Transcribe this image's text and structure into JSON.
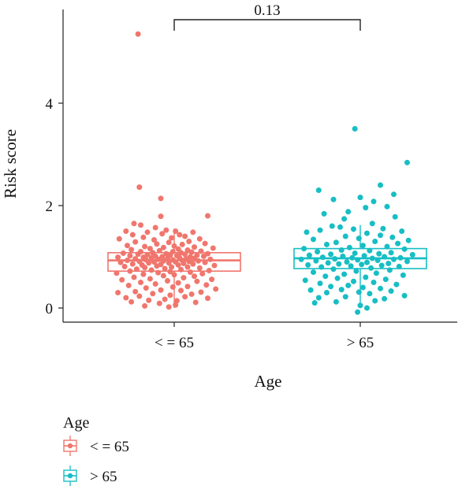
{
  "chart_data": {
    "type": "boxplot-jitter",
    "title": "",
    "xlabel": "Age",
    "ylabel": "Risk score",
    "ylim": [
      -0.2,
      5.85
    ],
    "y_ticks": [
      0,
      2,
      4
    ],
    "y_tick_labels": [
      "0",
      "2",
      "4"
    ],
    "categories": [
      "< = 65",
      "> 65"
    ],
    "colors": [
      "#F0766D",
      "#17BEC4"
    ],
    "grid": false,
    "legend": {
      "title": "Age",
      "position": "bottom-left",
      "entries": [
        "< = 65",
        "> 65"
      ]
    },
    "comparison": {
      "groups": [
        "< = 65",
        "> 65"
      ],
      "label": "0.13"
    },
    "boxes": [
      {
        "name": "< = 65",
        "q1": 0.72,
        "median": 0.93,
        "q3": 1.08,
        "whisker_low": 0.0,
        "whisker_high": 1.55
      },
      {
        "name": "> 65",
        "q1": 0.77,
        "median": 0.97,
        "q3": 1.16,
        "whisker_low": 0.0,
        "whisker_high": 1.62
      }
    ],
    "series": [
      {
        "name": "< = 65",
        "points": [
          {
            "x": -0.54,
            "y": 5.35
          },
          {
            "x": -0.52,
            "y": 2.36
          },
          {
            "x": -0.2,
            "y": 2.14
          },
          {
            "x": 0.5,
            "y": 1.8
          },
          {
            "x": -0.2,
            "y": 1.79
          },
          {
            "x": -0.6,
            "y": 1.65
          },
          {
            "x": -0.5,
            "y": 1.62
          },
          {
            "x": -0.28,
            "y": 1.57
          },
          {
            "x": -0.12,
            "y": 1.52
          },
          {
            "x": 0.02,
            "y": 1.5
          },
          {
            "x": -0.72,
            "y": 1.5
          },
          {
            "x": -0.4,
            "y": 1.48
          },
          {
            "x": 0.28,
            "y": 1.48
          },
          {
            "x": -0.18,
            "y": 1.45
          },
          {
            "x": 0.08,
            "y": 1.43
          },
          {
            "x": -0.62,
            "y": 1.43
          },
          {
            "x": 0.16,
            "y": 1.4
          },
          {
            "x": -0.46,
            "y": 1.38
          },
          {
            "x": -0.04,
            "y": 1.37
          },
          {
            "x": 0.38,
            "y": 1.35
          },
          {
            "x": -0.82,
            "y": 1.35
          },
          {
            "x": -0.3,
            "y": 1.33
          },
          {
            "x": 0.22,
            "y": 1.3
          },
          {
            "x": -0.58,
            "y": 1.29
          },
          {
            "x": -0.08,
            "y": 1.28
          },
          {
            "x": 0.46,
            "y": 1.26
          },
          {
            "x": -0.26,
            "y": 1.25
          },
          {
            "x": 0.12,
            "y": 1.24
          },
          {
            "x": -0.7,
            "y": 1.22
          },
          {
            "x": 0.0,
            "y": 1.21
          },
          {
            "x": -0.44,
            "y": 1.2
          },
          {
            "x": 0.3,
            "y": 1.19
          },
          {
            "x": -0.16,
            "y": 1.18
          },
          {
            "x": 0.58,
            "y": 1.17
          },
          {
            "x": -0.36,
            "y": 1.16
          },
          {
            "x": 0.06,
            "y": 1.15
          },
          {
            "x": -0.64,
            "y": 1.14
          },
          {
            "x": 0.2,
            "y": 1.13
          },
          {
            "x": -0.22,
            "y": 1.12
          },
          {
            "x": 0.4,
            "y": 1.11
          },
          {
            "x": -0.5,
            "y": 1.1
          },
          {
            "x": -0.02,
            "y": 1.1
          },
          {
            "x": 0.26,
            "y": 1.09
          },
          {
            "x": -0.32,
            "y": 1.08
          },
          {
            "x": 0.1,
            "y": 1.08
          },
          {
            "x": -0.76,
            "y": 1.07
          },
          {
            "x": 0.5,
            "y": 1.06
          },
          {
            "x": -0.12,
            "y": 1.06
          },
          {
            "x": -0.54,
            "y": 1.05
          },
          {
            "x": 0.16,
            "y": 1.05
          },
          {
            "x": -0.4,
            "y": 1.04
          },
          {
            "x": 0.34,
            "y": 1.03
          },
          {
            "x": -0.06,
            "y": 1.03
          },
          {
            "x": -0.66,
            "y": 1.02
          },
          {
            "x": 0.04,
            "y": 1.02
          },
          {
            "x": -0.28,
            "y": 1.01
          },
          {
            "x": 0.44,
            "y": 1.01
          },
          {
            "x": -0.18,
            "y": 1.0
          },
          {
            "x": 0.24,
            "y": 1.0
          },
          {
            "x": -0.46,
            "y": 0.99
          },
          {
            "x": -0.84,
            "y": 0.99
          },
          {
            "x": 0.08,
            "y": 0.98
          },
          {
            "x": -0.34,
            "y": 0.98
          },
          {
            "x": 0.3,
            "y": 0.97
          },
          {
            "x": -0.1,
            "y": 0.97
          },
          {
            "x": -0.58,
            "y": 0.96
          },
          {
            "x": 0.18,
            "y": 0.96
          },
          {
            "x": -0.24,
            "y": 0.95
          },
          {
            "x": 0.54,
            "y": 0.95
          },
          {
            "x": -0.02,
            "y": 0.94
          },
          {
            "x": -0.42,
            "y": 0.94
          },
          {
            "x": 0.12,
            "y": 0.93
          },
          {
            "x": -0.7,
            "y": 0.93
          },
          {
            "x": 0.36,
            "y": 0.92
          },
          {
            "x": -0.16,
            "y": 0.92
          },
          {
            "x": -0.52,
            "y": 0.91
          },
          {
            "x": 0.22,
            "y": 0.91
          },
          {
            "x": -0.3,
            "y": 0.9
          },
          {
            "x": 0.02,
            "y": 0.9
          },
          {
            "x": -0.8,
            "y": 0.89
          },
          {
            "x": 0.46,
            "y": 0.89
          },
          {
            "x": -0.08,
            "y": 0.88
          },
          {
            "x": -0.38,
            "y": 0.88
          },
          {
            "x": 0.14,
            "y": 0.87
          },
          {
            "x": -0.62,
            "y": 0.86
          },
          {
            "x": 0.28,
            "y": 0.86
          },
          {
            "x": -0.2,
            "y": 0.85
          },
          {
            "x": -0.48,
            "y": 0.84
          },
          {
            "x": 0.06,
            "y": 0.84
          },
          {
            "x": 0.6,
            "y": 0.83
          },
          {
            "x": -0.26,
            "y": 0.82
          },
          {
            "x": -0.74,
            "y": 0.81
          },
          {
            "x": 0.2,
            "y": 0.8
          },
          {
            "x": -0.04,
            "y": 0.8
          },
          {
            "x": -0.44,
            "y": 0.79
          },
          {
            "x": 0.38,
            "y": 0.78
          },
          {
            "x": -0.14,
            "y": 0.77
          },
          {
            "x": -0.56,
            "y": 0.76
          },
          {
            "x": 0.1,
            "y": 0.75
          },
          {
            "x": -0.34,
            "y": 0.74
          },
          {
            "x": 0.52,
            "y": 0.73
          },
          {
            "x": -0.66,
            "y": 0.72
          },
          {
            "x": -0.06,
            "y": 0.71
          },
          {
            "x": 0.24,
            "y": 0.7
          },
          {
            "x": -0.24,
            "y": 0.69
          },
          {
            "x": -0.86,
            "y": 0.68
          },
          {
            "x": 0.42,
            "y": 0.67
          },
          {
            "x": -0.46,
            "y": 0.66
          },
          {
            "x": 0.0,
            "y": 0.65
          },
          {
            "x": -0.16,
            "y": 0.63
          },
          {
            "x": 0.3,
            "y": 0.62
          },
          {
            "x": -0.6,
            "y": 0.6
          },
          {
            "x": 0.14,
            "y": 0.59
          },
          {
            "x": -0.36,
            "y": 0.57
          },
          {
            "x": 0.56,
            "y": 0.56
          },
          {
            "x": -0.78,
            "y": 0.55
          },
          {
            "x": -0.1,
            "y": 0.53
          },
          {
            "x": 0.34,
            "y": 0.52
          },
          {
            "x": -0.5,
            "y": 0.5
          },
          {
            "x": 0.06,
            "y": 0.49
          },
          {
            "x": -0.28,
            "y": 0.47
          },
          {
            "x": 0.48,
            "y": 0.45
          },
          {
            "x": -0.68,
            "y": 0.44
          },
          {
            "x": 0.2,
            "y": 0.42
          },
          {
            "x": -0.02,
            "y": 0.41
          },
          {
            "x": -0.42,
            "y": 0.39
          },
          {
            "x": 0.62,
            "y": 0.37
          },
          {
            "x": -0.2,
            "y": 0.35
          },
          {
            "x": 0.1,
            "y": 0.34
          },
          {
            "x": -0.58,
            "y": 0.32
          },
          {
            "x": 0.4,
            "y": 0.31
          },
          {
            "x": -0.84,
            "y": 0.3
          },
          {
            "x": -0.32,
            "y": 0.28
          },
          {
            "x": 0.26,
            "y": 0.27
          },
          {
            "x": -0.06,
            "y": 0.25
          },
          {
            "x": -0.52,
            "y": 0.23
          },
          {
            "x": 0.16,
            "y": 0.22
          },
          {
            "x": -0.72,
            "y": 0.2
          },
          {
            "x": 0.5,
            "y": 0.19
          },
          {
            "x": -0.14,
            "y": 0.17
          },
          {
            "x": -0.38,
            "y": 0.15
          },
          {
            "x": 0.04,
            "y": 0.14
          },
          {
            "x": -0.64,
            "y": 0.12
          },
          {
            "x": 0.32,
            "y": 0.11
          },
          {
            "x": -0.22,
            "y": 0.09
          },
          {
            "x": 0.02,
            "y": 0.06
          },
          {
            "x": -0.44,
            "y": 0.04
          },
          {
            "x": -0.08,
            "y": 0.02
          }
        ]
      },
      {
        "name": "> 65",
        "points": [
          {
            "x": -0.08,
            "y": 3.5
          },
          {
            "x": 0.7,
            "y": 2.84
          },
          {
            "x": 0.3,
            "y": 2.4
          },
          {
            "x": -0.62,
            "y": 2.3
          },
          {
            "x": 0.5,
            "y": 2.22
          },
          {
            "x": 0.0,
            "y": 2.16
          },
          {
            "x": -0.4,
            "y": 2.12
          },
          {
            "x": 0.2,
            "y": 2.08
          },
          {
            "x": 0.4,
            "y": 1.98
          },
          {
            "x": 0.08,
            "y": 1.96
          },
          {
            "x": -0.18,
            "y": 1.88
          },
          {
            "x": -0.54,
            "y": 1.84
          },
          {
            "x": 0.52,
            "y": 1.78
          },
          {
            "x": -0.24,
            "y": 1.74
          },
          {
            "x": 0.18,
            "y": 1.65
          },
          {
            "x": -0.42,
            "y": 1.6
          },
          {
            "x": 0.34,
            "y": 1.55
          },
          {
            "x": -0.3,
            "y": 1.58
          },
          {
            "x": -0.1,
            "y": 1.54
          },
          {
            "x": -0.6,
            "y": 1.52
          },
          {
            "x": 0.62,
            "y": 1.5
          },
          {
            "x": -0.8,
            "y": 1.48
          },
          {
            "x": 0.1,
            "y": 1.46
          },
          {
            "x": 0.3,
            "y": 1.42
          },
          {
            "x": -0.22,
            "y": 1.4
          },
          {
            "x": 0.48,
            "y": 1.38
          },
          {
            "x": -0.02,
            "y": 1.36
          },
          {
            "x": -0.7,
            "y": 1.34
          },
          {
            "x": 0.72,
            "y": 1.32
          },
          {
            "x": 0.22,
            "y": 1.3
          },
          {
            "x": -0.36,
            "y": 1.28
          },
          {
            "x": 0.56,
            "y": 1.26
          },
          {
            "x": -0.5,
            "y": 1.24
          },
          {
            "x": 0.04,
            "y": 1.22
          },
          {
            "x": 0.4,
            "y": 1.2
          },
          {
            "x": -0.16,
            "y": 1.18
          },
          {
            "x": -0.84,
            "y": 1.16
          },
          {
            "x": 0.66,
            "y": 1.15
          },
          {
            "x": -0.28,
            "y": 1.13
          },
          {
            "x": 0.14,
            "y": 1.12
          },
          {
            "x": -0.64,
            "y": 1.1
          },
          {
            "x": 0.46,
            "y": 1.08
          },
          {
            "x": -0.08,
            "y": 1.07
          },
          {
            "x": 0.28,
            "y": 1.06
          },
          {
            "x": -0.44,
            "y": 1.05
          },
          {
            "x": 0.78,
            "y": 1.04
          },
          {
            "x": -0.76,
            "y": 1.03
          },
          {
            "x": 0.06,
            "y": 1.02
          },
          {
            "x": -0.26,
            "y": 1.01
          },
          {
            "x": 0.36,
            "y": 1.0
          },
          {
            "x": -0.56,
            "y": 0.99
          },
          {
            "x": 0.6,
            "y": 0.98
          },
          {
            "x": -0.12,
            "y": 0.98
          },
          {
            "x": 0.18,
            "y": 0.97
          },
          {
            "x": -0.38,
            "y": 0.96
          },
          {
            "x": -0.88,
            "y": 0.95
          },
          {
            "x": 0.5,
            "y": 0.95
          },
          {
            "x": -0.04,
            "y": 0.94
          },
          {
            "x": 0.26,
            "y": 0.93
          },
          {
            "x": -0.66,
            "y": 0.92
          },
          {
            "x": 0.7,
            "y": 0.91
          },
          {
            "x": -0.2,
            "y": 0.9
          },
          {
            "x": 0.1,
            "y": 0.89
          },
          {
            "x": -0.48,
            "y": 0.88
          },
          {
            "x": 0.42,
            "y": 0.87
          },
          {
            "x": -0.32,
            "y": 0.86
          },
          {
            "x": 0.02,
            "y": 0.85
          },
          {
            "x": -0.78,
            "y": 0.84
          },
          {
            "x": 0.32,
            "y": 0.83
          },
          {
            "x": -0.14,
            "y": 0.82
          },
          {
            "x": 0.58,
            "y": 0.81
          },
          {
            "x": -0.58,
            "y": 0.8
          },
          {
            "x": 0.16,
            "y": 0.78
          },
          {
            "x": -0.4,
            "y": 0.76
          },
          {
            "x": 0.44,
            "y": 0.74
          },
          {
            "x": -0.06,
            "y": 0.72
          },
          {
            "x": -0.7,
            "y": 0.7
          },
          {
            "x": 0.24,
            "y": 0.68
          },
          {
            "x": -0.24,
            "y": 0.66
          },
          {
            "x": 0.64,
            "y": 0.64
          },
          {
            "x": -0.52,
            "y": 0.62
          },
          {
            "x": 0.08,
            "y": 0.6
          },
          {
            "x": -0.34,
            "y": 0.58
          },
          {
            "x": 0.38,
            "y": 0.56
          },
          {
            "x": -0.82,
            "y": 0.54
          },
          {
            "x": -0.1,
            "y": 0.52
          },
          {
            "x": 0.2,
            "y": 0.5
          },
          {
            "x": -0.6,
            "y": 0.48
          },
          {
            "x": 0.54,
            "y": 0.46
          },
          {
            "x": -0.18,
            "y": 0.44
          },
          {
            "x": -0.44,
            "y": 0.42
          },
          {
            "x": 0.04,
            "y": 0.4
          },
          {
            "x": 0.3,
            "y": 0.38
          },
          {
            "x": -0.28,
            "y": 0.36
          },
          {
            "x": -0.74,
            "y": 0.35
          },
          {
            "x": 0.46,
            "y": 0.33
          },
          {
            "x": -0.02,
            "y": 0.31
          },
          {
            "x": -0.5,
            "y": 0.3
          },
          {
            "x": 0.14,
            "y": 0.28
          },
          {
            "x": 0.66,
            "y": 0.24
          },
          {
            "x": -0.22,
            "y": 0.22
          },
          {
            "x": -0.62,
            "y": 0.2
          },
          {
            "x": 0.36,
            "y": 0.18
          },
          {
            "x": 0.22,
            "y": 0.14
          },
          {
            "x": -0.36,
            "y": 0.12
          },
          {
            "x": 0.0,
            "y": 0.05
          },
          {
            "x": -0.68,
            "y": 0.1
          },
          {
            "x": 0.1,
            "y": 0.0
          },
          {
            "x": -0.04,
            "y": -0.08
          }
        ]
      }
    ]
  }
}
